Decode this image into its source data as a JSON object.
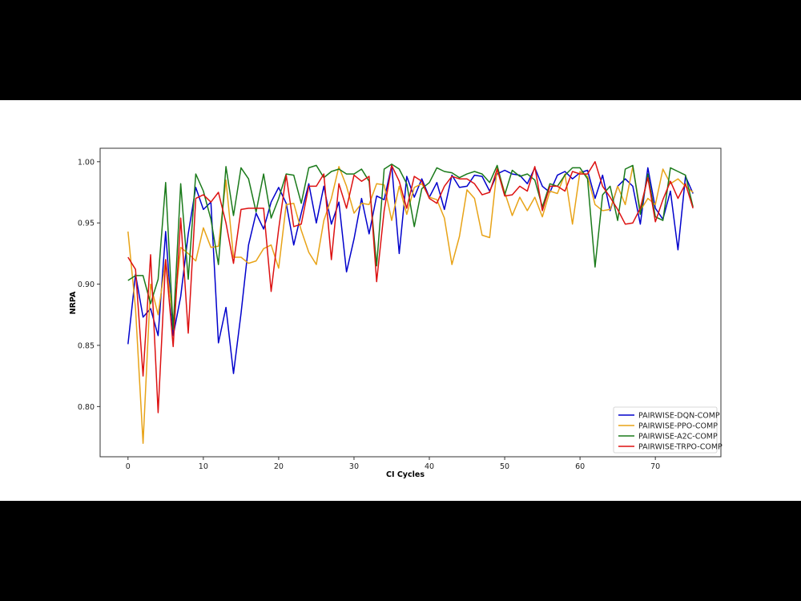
{
  "chart_data": {
    "type": "line",
    "title": "",
    "xlabel": "CI Cycles",
    "ylabel": "NRPA",
    "xlim": [
      -3.7,
      78.7
    ],
    "ylim": [
      0.759,
      1.011
    ],
    "xticks": [
      0,
      10,
      20,
      30,
      40,
      50,
      60,
      70
    ],
    "yticks": [
      0.8,
      0.85,
      0.9,
      0.95,
      1.0
    ],
    "xtick_labels": [
      "0",
      "10",
      "20",
      "30",
      "40",
      "50",
      "60",
      "70"
    ],
    "ytick_labels": [
      "0.80",
      "0.85",
      "0.90",
      "0.95",
      "1.00"
    ],
    "grid": false,
    "legend_position": "lower right",
    "x": [
      0,
      1,
      2,
      3,
      4,
      5,
      6,
      7,
      8,
      9,
      10,
      11,
      12,
      13,
      14,
      15,
      16,
      17,
      18,
      19,
      20,
      21,
      22,
      23,
      24,
      25,
      26,
      27,
      28,
      29,
      30,
      31,
      32,
      33,
      34,
      35,
      36,
      37,
      38,
      39,
      40,
      41,
      42,
      43,
      44,
      45,
      46,
      47,
      48,
      49,
      50,
      51,
      52,
      53,
      54,
      55,
      56,
      57,
      58,
      59,
      60,
      61,
      62,
      63,
      64,
      65,
      66,
      67,
      68,
      69,
      70,
      71,
      72,
      73,
      74,
      75
    ],
    "series": [
      {
        "name": "PAIRWISE-DQN-COMP",
        "color": "#0000cc",
        "values": [
          0.851,
          0.908,
          0.873,
          0.88,
          0.858,
          0.943,
          0.858,
          0.89,
          0.941,
          0.979,
          0.961,
          0.967,
          0.852,
          0.881,
          0.827,
          0.876,
          0.932,
          0.958,
          0.945,
          0.967,
          0.979,
          0.966,
          0.932,
          0.958,
          0.982,
          0.95,
          0.98,
          0.949,
          0.967,
          0.91,
          0.937,
          0.97,
          0.941,
          0.972,
          0.969,
          0.997,
          0.925,
          0.988,
          0.971,
          0.986,
          0.971,
          0.983,
          0.961,
          0.989,
          0.979,
          0.98,
          0.989,
          0.988,
          0.976,
          0.99,
          0.993,
          0.99,
          0.989,
          0.982,
          0.995,
          0.98,
          0.975,
          0.989,
          0.992,
          0.986,
          0.991,
          0.993,
          0.97,
          0.989,
          0.96,
          0.98,
          0.986,
          0.98,
          0.949,
          0.995,
          0.962,
          0.953,
          0.976,
          0.928,
          0.988,
          0.974
        ]
      },
      {
        "name": "PAIRWISE-PPO-COMP",
        "color": "#e8a317",
        "values": [
          0.943,
          0.88,
          0.77,
          0.9,
          0.875,
          0.92,
          0.87,
          0.93,
          0.925,
          0.919,
          0.946,
          0.93,
          0.931,
          0.985,
          0.922,
          0.922,
          0.917,
          0.919,
          0.929,
          0.932,
          0.913,
          0.965,
          0.966,
          0.944,
          0.926,
          0.916,
          0.952,
          0.97,
          0.996,
          0.98,
          0.958,
          0.966,
          0.965,
          0.982,
          0.981,
          0.952,
          0.98,
          0.957,
          0.979,
          0.982,
          0.971,
          0.969,
          0.954,
          0.916,
          0.939,
          0.977,
          0.97,
          0.94,
          0.938,
          0.995,
          0.975,
          0.956,
          0.971,
          0.96,
          0.971,
          0.955,
          0.976,
          0.974,
          0.99,
          0.949,
          0.992,
          0.988,
          0.965,
          0.96,
          0.961,
          0.98,
          0.965,
          0.996,
          0.96,
          0.97,
          0.965,
          0.994,
          0.982,
          0.986,
          0.98,
          0.975
        ]
      },
      {
        "name": "PAIRWISE-A2C-COMP",
        "color": "#1a7a1a",
        "values": [
          0.903,
          0.907,
          0.907,
          0.884,
          0.904,
          0.983,
          0.863,
          0.982,
          0.904,
          0.99,
          0.976,
          0.953,
          0.916,
          0.996,
          0.956,
          0.995,
          0.986,
          0.959,
          0.99,
          0.954,
          0.97,
          0.99,
          0.989,
          0.966,
          0.995,
          0.997,
          0.987,
          0.992,
          0.994,
          0.99,
          0.99,
          0.994,
          0.984,
          0.915,
          0.994,
          0.998,
          0.994,
          0.982,
          0.947,
          0.978,
          0.983,
          0.995,
          0.992,
          0.991,
          0.987,
          0.99,
          0.992,
          0.99,
          0.983,
          0.997,
          0.973,
          0.993,
          0.988,
          0.99,
          0.985,
          0.963,
          0.982,
          0.98,
          0.989,
          0.995,
          0.995,
          0.986,
          0.914,
          0.973,
          0.98,
          0.952,
          0.994,
          0.997,
          0.957,
          0.99,
          0.955,
          0.952,
          0.995,
          0.992,
          0.989,
          0.963
        ]
      },
      {
        "name": "PAIRWISE-TRPO-COMP",
        "color": "#dd1111",
        "values": [
          0.922,
          0.912,
          0.825,
          0.924,
          0.795,
          0.92,
          0.849,
          0.954,
          0.86,
          0.97,
          0.973,
          0.967,
          0.975,
          0.95,
          0.917,
          0.961,
          0.962,
          0.962,
          0.962,
          0.894,
          0.945,
          0.989,
          0.947,
          0.949,
          0.98,
          0.98,
          0.99,
          0.92,
          0.982,
          0.962,
          0.989,
          0.984,
          0.988,
          0.902,
          0.96,
          0.997,
          0.984,
          0.962,
          0.988,
          0.984,
          0.97,
          0.966,
          0.98,
          0.988,
          0.986,
          0.986,
          0.982,
          0.973,
          0.975,
          0.994,
          0.972,
          0.973,
          0.98,
          0.976,
          0.996,
          0.96,
          0.98,
          0.98,
          0.976,
          0.992,
          0.99,
          0.99,
          1.0,
          0.98,
          0.971,
          0.961,
          0.949,
          0.95,
          0.962,
          0.987,
          0.951,
          0.969,
          0.984,
          0.97,
          0.982,
          0.962
        ]
      }
    ]
  },
  "legend": {
    "items": [
      {
        "label": "PAIRWISE-DQN-COMP",
        "color": "#0000cc"
      },
      {
        "label": "PAIRWISE-PPO-COMP",
        "color": "#e8a317"
      },
      {
        "label": "PAIRWISE-A2C-COMP",
        "color": "#1a7a1a"
      },
      {
        "label": "PAIRWISE-TRPO-COMP",
        "color": "#dd1111"
      }
    ]
  }
}
